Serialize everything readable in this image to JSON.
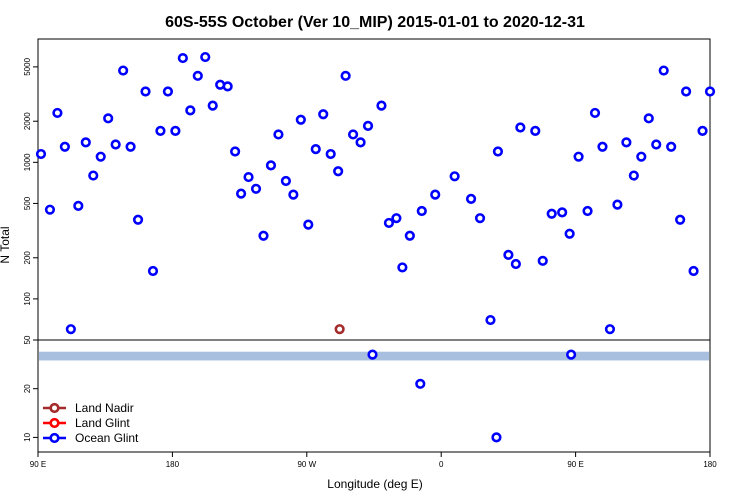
{
  "chart_data": {
    "type": "scatter",
    "title": "60S-55S October (Ver 10_MIP)   2015-01-01 to 2020-12-31",
    "xlabel": "Longitude (deg E)",
    "ylabel": "N Total",
    "x_ticks": [
      {
        "value": 90,
        "label": "90 E"
      },
      {
        "value": 180,
        "label": "180"
      },
      {
        "value": 270,
        "label": "90 W"
      },
      {
        "value": 360,
        "label": "0"
      },
      {
        "value": 450,
        "label": "90 E"
      },
      {
        "value": 540,
        "label": "180"
      }
    ],
    "xlim": [
      90,
      540
    ],
    "upper_panel": {
      "scale": "log",
      "ylim": [
        50,
        8000
      ],
      "y_ticks": [
        "50",
        "100",
        "200",
        "500",
        "1000",
        "2000",
        "5000"
      ]
    },
    "lower_panel": {
      "scale": "linear",
      "ylim": [
        7,
        30
      ],
      "y_ticks": [
        "10",
        "20"
      ]
    },
    "band": {
      "y_from": 25.8,
      "y_to": 27.6,
      "color": "#a8bfe0"
    },
    "series": [
      {
        "name": "Land Nadir",
        "color": "#a52a2a",
        "upper": [
          [
            292,
            60
          ]
        ],
        "lower": []
      },
      {
        "name": "Land Glint",
        "color": "#ff0000",
        "upper": [],
        "lower": []
      },
      {
        "name": "Ocean Glint",
        "color": "#0000ff",
        "upper": [
          [
            92,
            1150
          ],
          [
            98,
            450
          ],
          [
            103,
            2300
          ],
          [
            108,
            1300
          ],
          [
            112,
            60
          ],
          [
            117,
            480
          ],
          [
            122,
            1400
          ],
          [
            127,
            800
          ],
          [
            132,
            1100
          ],
          [
            137,
            2100
          ],
          [
            142,
            1350
          ],
          [
            147,
            4700
          ],
          [
            152,
            1300
          ],
          [
            157,
            380
          ],
          [
            162,
            3300
          ],
          [
            167,
            160
          ],
          [
            172,
            1700
          ],
          [
            177,
            3300
          ],
          [
            182,
            1700
          ],
          [
            187,
            5800
          ],
          [
            192,
            2400
          ],
          [
            197,
            4300
          ],
          [
            202,
            5900
          ],
          [
            207,
            2600
          ],
          [
            212,
            3700
          ],
          [
            217,
            3600
          ],
          [
            222,
            1200
          ],
          [
            226,
            590
          ],
          [
            231,
            780
          ],
          [
            236,
            640
          ],
          [
            241,
            290
          ],
          [
            246,
            950
          ],
          [
            251,
            1600
          ],
          [
            256,
            730
          ],
          [
            261,
            580
          ],
          [
            266,
            2050
          ],
          [
            271,
            350
          ],
          [
            276,
            1250
          ],
          [
            281,
            2250
          ],
          [
            286,
            1150
          ],
          [
            291,
            860
          ],
          [
            296,
            4300
          ],
          [
            301,
            1600
          ],
          [
            306,
            1400
          ],
          [
            311,
            1850
          ],
          [
            320,
            2600
          ],
          [
            325,
            360
          ],
          [
            330,
            390
          ],
          [
            334,
            170
          ],
          [
            339,
            290
          ],
          [
            347,
            440
          ],
          [
            356,
            580
          ],
          [
            369,
            790
          ],
          [
            380,
            540
          ],
          [
            386,
            390
          ],
          [
            393,
            70
          ],
          [
            398,
            1200
          ],
          [
            405,
            210
          ],
          [
            410,
            180
          ],
          [
            413,
            1800
          ],
          [
            423,
            1700
          ],
          [
            428,
            190
          ],
          [
            434,
            420
          ],
          [
            441,
            430
          ],
          [
            446,
            300
          ],
          [
            452,
            1100
          ],
          [
            458,
            440
          ],
          [
            463,
            2300
          ],
          [
            468,
            1300
          ],
          [
            473,
            60
          ],
          [
            478,
            490
          ],
          [
            484,
            1400
          ],
          [
            489,
            800
          ],
          [
            494,
            1100
          ],
          [
            499,
            2100
          ],
          [
            504,
            1350
          ],
          [
            509,
            4700
          ],
          [
            514,
            1300
          ],
          [
            520,
            380
          ],
          [
            524,
            3300
          ],
          [
            529,
            160
          ],
          [
            535,
            1700
          ],
          [
            540,
            3300
          ]
        ],
        "lower": [
          [
            314,
            27
          ],
          [
            346,
            21
          ],
          [
            397,
            10
          ],
          [
            447,
            27
          ]
        ]
      }
    ],
    "legend_position": "bottom-left"
  }
}
